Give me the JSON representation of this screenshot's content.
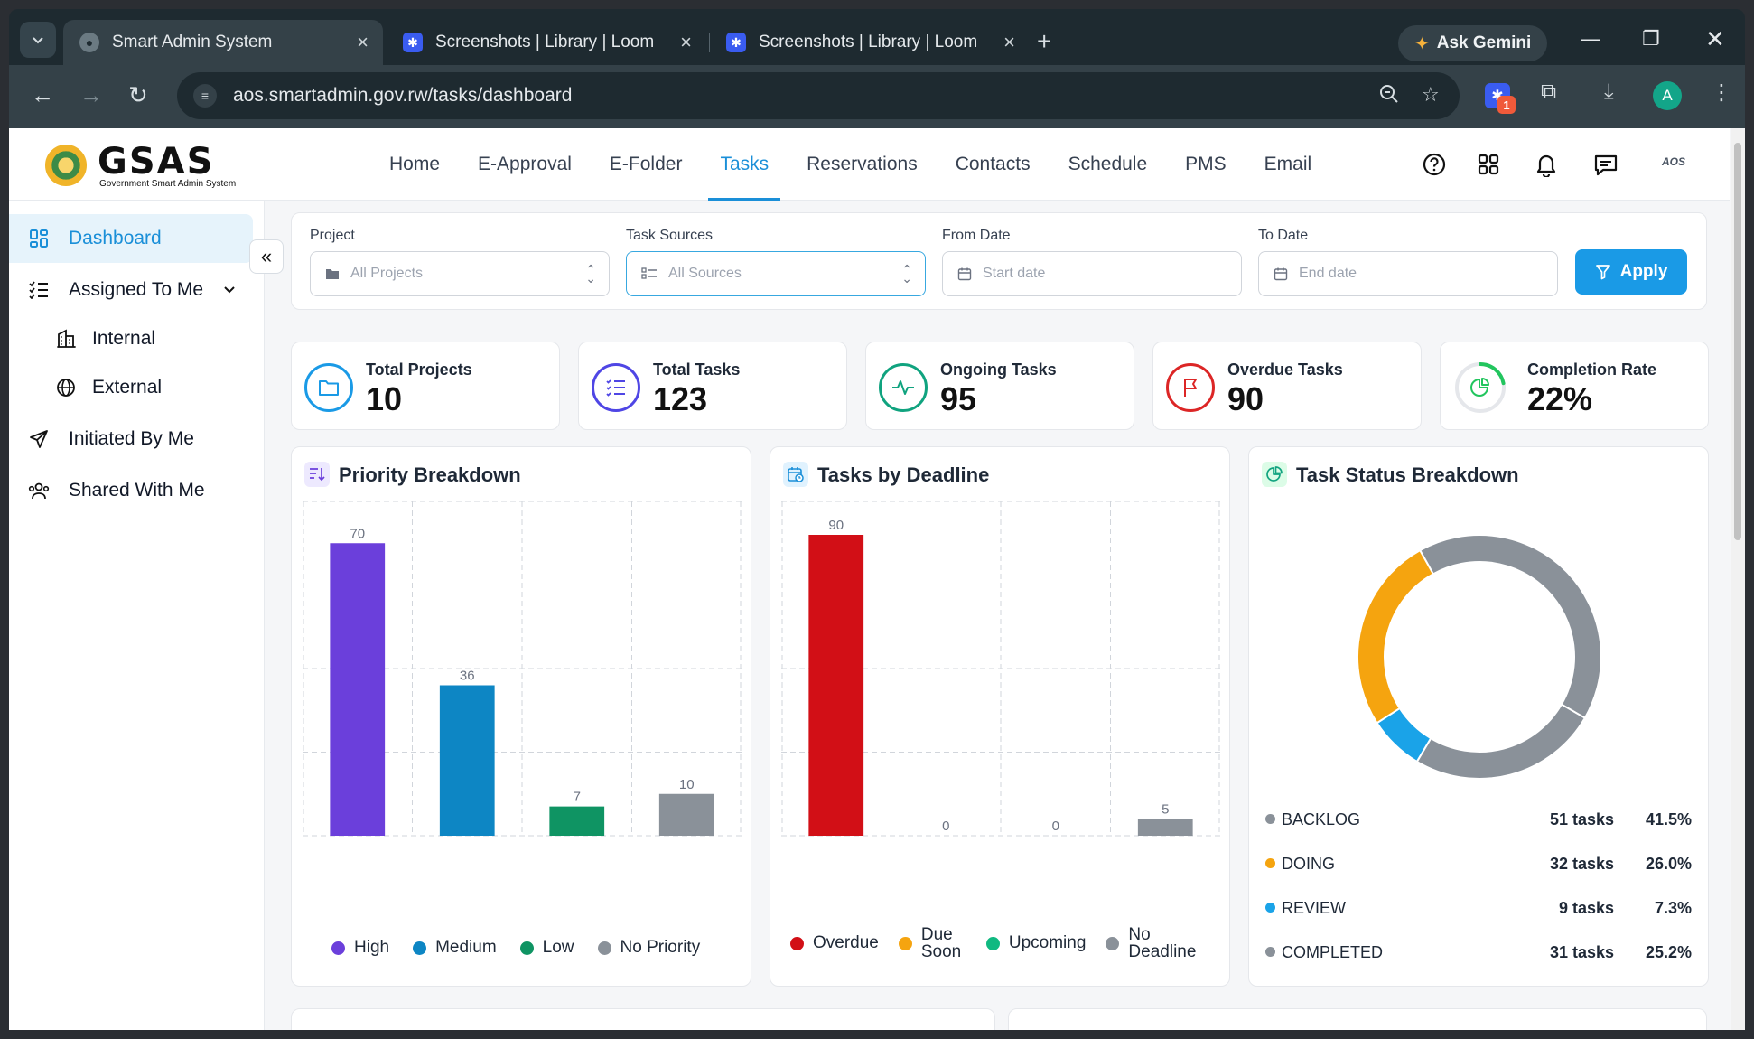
{
  "browser": {
    "tabs": [
      {
        "title": "Smart Admin System",
        "active": true
      },
      {
        "title": "Screenshots | Library | Loom",
        "active": false
      },
      {
        "title": "Screenshots | Library | Loom",
        "active": false
      }
    ],
    "gemini_label": "Ask Gemini",
    "url": "aos.smartadmin.gov.rw/tasks/dashboard",
    "extension_badge": "1",
    "profile_initial": "A"
  },
  "app": {
    "logo_text": "GSAS",
    "logo_subtitle": "Government Smart Admin System",
    "nav": [
      "Home",
      "E-Approval",
      "E-Folder",
      "Tasks",
      "Reservations",
      "Contacts",
      "Schedule",
      "PMS",
      "Email"
    ],
    "active_nav": "Tasks",
    "header_brand_small": "AOS"
  },
  "sidebar": {
    "items": [
      {
        "label": "Dashboard",
        "icon": "dashboard-icon",
        "active": true
      },
      {
        "label": "Assigned To Me",
        "icon": "list-check-icon"
      },
      {
        "label": "Internal",
        "icon": "building-icon",
        "sub": true
      },
      {
        "label": "External",
        "icon": "globe-icon",
        "sub": true
      },
      {
        "label": "Initiated By Me",
        "icon": "send-icon"
      },
      {
        "label": "Shared With Me",
        "icon": "users-icon"
      }
    ]
  },
  "filters": {
    "project": {
      "label": "Project",
      "value": "All Projects"
    },
    "sources": {
      "label": "Task Sources",
      "value": "All Sources"
    },
    "from": {
      "label": "From Date",
      "placeholder": "Start date"
    },
    "to": {
      "label": "To Date",
      "placeholder": "End date"
    },
    "apply_label": "Apply"
  },
  "stats": [
    {
      "label": "Total Projects",
      "value": "10",
      "color": "#1a9ae6"
    },
    {
      "label": "Total Tasks",
      "value": "123",
      "color": "#4f46e5"
    },
    {
      "label": "Ongoing Tasks",
      "value": "95",
      "color": "#10a37f"
    },
    {
      "label": "Overdue Tasks",
      "value": "90",
      "color": "#dc2626"
    },
    {
      "label": "Completion Rate",
      "value": "22%",
      "color": "#22c55e",
      "progress": 0.22
    }
  ],
  "charts": {
    "priority_title": "Priority Breakdown",
    "deadline_title": "Tasks by Deadline",
    "status_title": "Task Status Breakdown"
  },
  "chart_data": [
    {
      "type": "bar",
      "title": "Priority Breakdown",
      "categories": [
        "High",
        "Medium",
        "Low",
        "No Priority"
      ],
      "values": [
        70,
        36,
        7,
        10
      ],
      "colors": [
        "#6b3fdb",
        "#0d86c4",
        "#0f9463",
        "#8a9199"
      ],
      "ylim": [
        0,
        80
      ],
      "grid": true,
      "legend": "bottom"
    },
    {
      "type": "bar",
      "title": "Tasks by Deadline",
      "categories": [
        "Overdue",
        "Due Soon",
        "Upcoming",
        "No Deadline"
      ],
      "values": [
        90,
        0,
        0,
        5
      ],
      "colors": [
        "#d20f16",
        "#f5a40f",
        "#10b981",
        "#8a9199"
      ],
      "ylim": [
        0,
        100
      ],
      "grid": true,
      "legend": "bottom"
    },
    {
      "type": "pie",
      "title": "Task Status Breakdown",
      "categories": [
        "BACKLOG",
        "DOING",
        "REVIEW",
        "COMPLETED"
      ],
      "values": [
        51,
        32,
        9,
        31
      ],
      "tasks_labels": [
        "51 tasks",
        "32 tasks",
        "9 tasks",
        "31 tasks"
      ],
      "percent_labels": [
        "41.5%",
        "26.0%",
        "7.3%",
        "25.2%"
      ],
      "colors": [
        "#8a9199",
        "#f5a40f",
        "#1aa3e8",
        "#8a9199"
      ],
      "legend": "bottom"
    }
  ]
}
